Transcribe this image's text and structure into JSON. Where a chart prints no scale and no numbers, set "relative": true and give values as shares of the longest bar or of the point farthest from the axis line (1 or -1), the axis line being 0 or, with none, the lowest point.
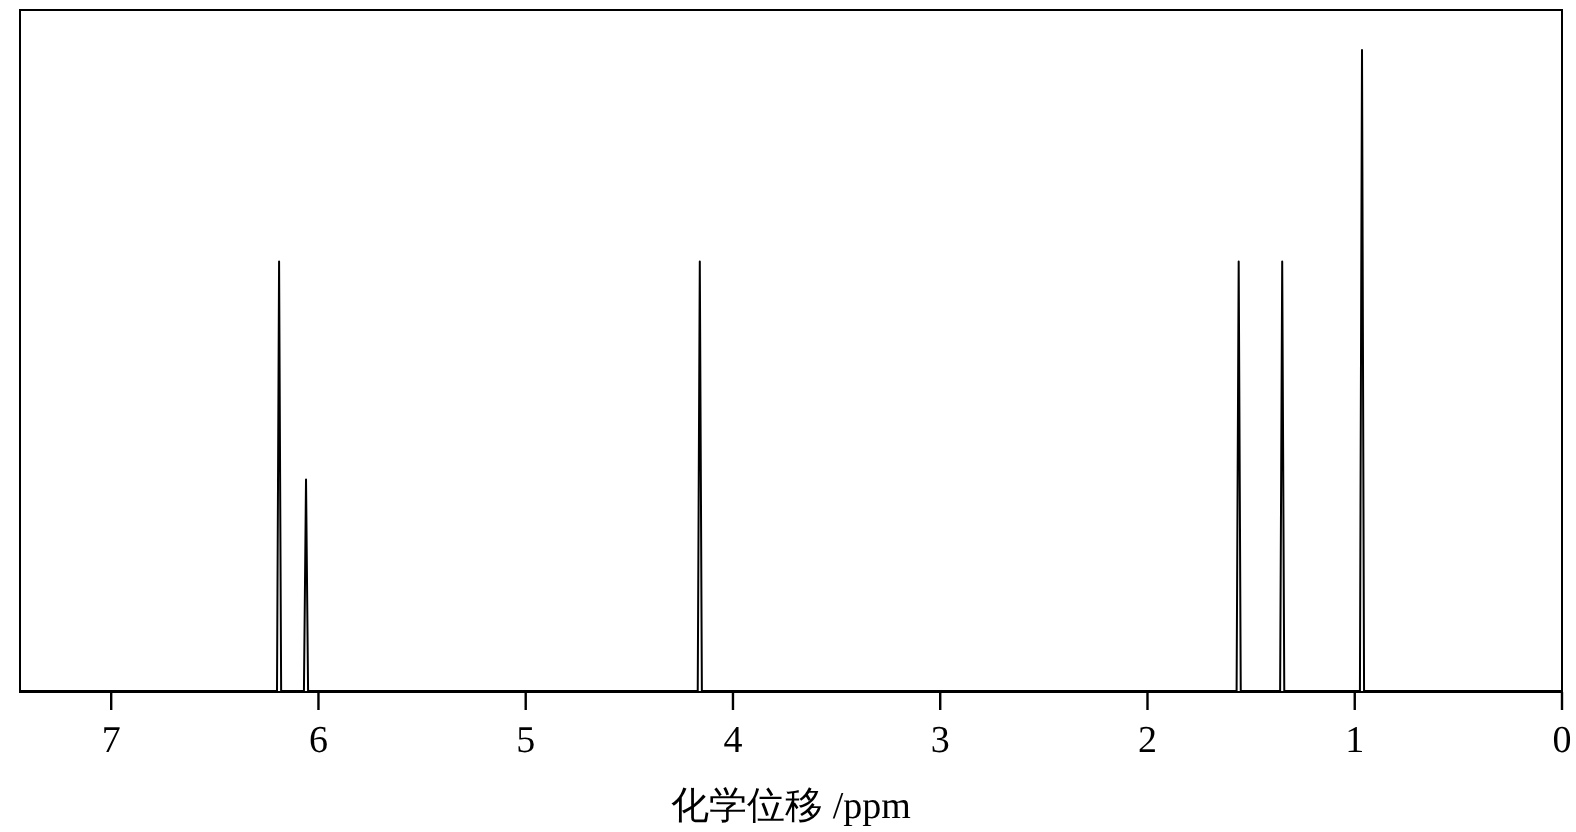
{
  "chart_data": {
    "type": "line",
    "xlabel": "化学位移 /ppm",
    "relative": true,
    "color": "#000000",
    "x": [
      7.44,
      6.2,
      6.19,
      6.18,
      6.07,
      6.06,
      6.05,
      4.17,
      4.16,
      4.15,
      1.57,
      1.56,
      1.55,
      1.36,
      1.35,
      1.34,
      0.975,
      0.965,
      0.955,
      0
    ],
    "values": [
      0,
      0,
      0.67,
      0,
      0,
      0.33,
      0,
      0,
      0.67,
      0,
      0,
      0.67,
      0,
      0,
      0.67,
      0,
      0,
      1,
      0,
      0
    ],
    "xlim": [
      7.44,
      0
    ],
    "xticks": [
      7,
      6,
      5,
      4,
      3,
      2,
      1,
      0
    ],
    "tick_labels": "x"
  }
}
